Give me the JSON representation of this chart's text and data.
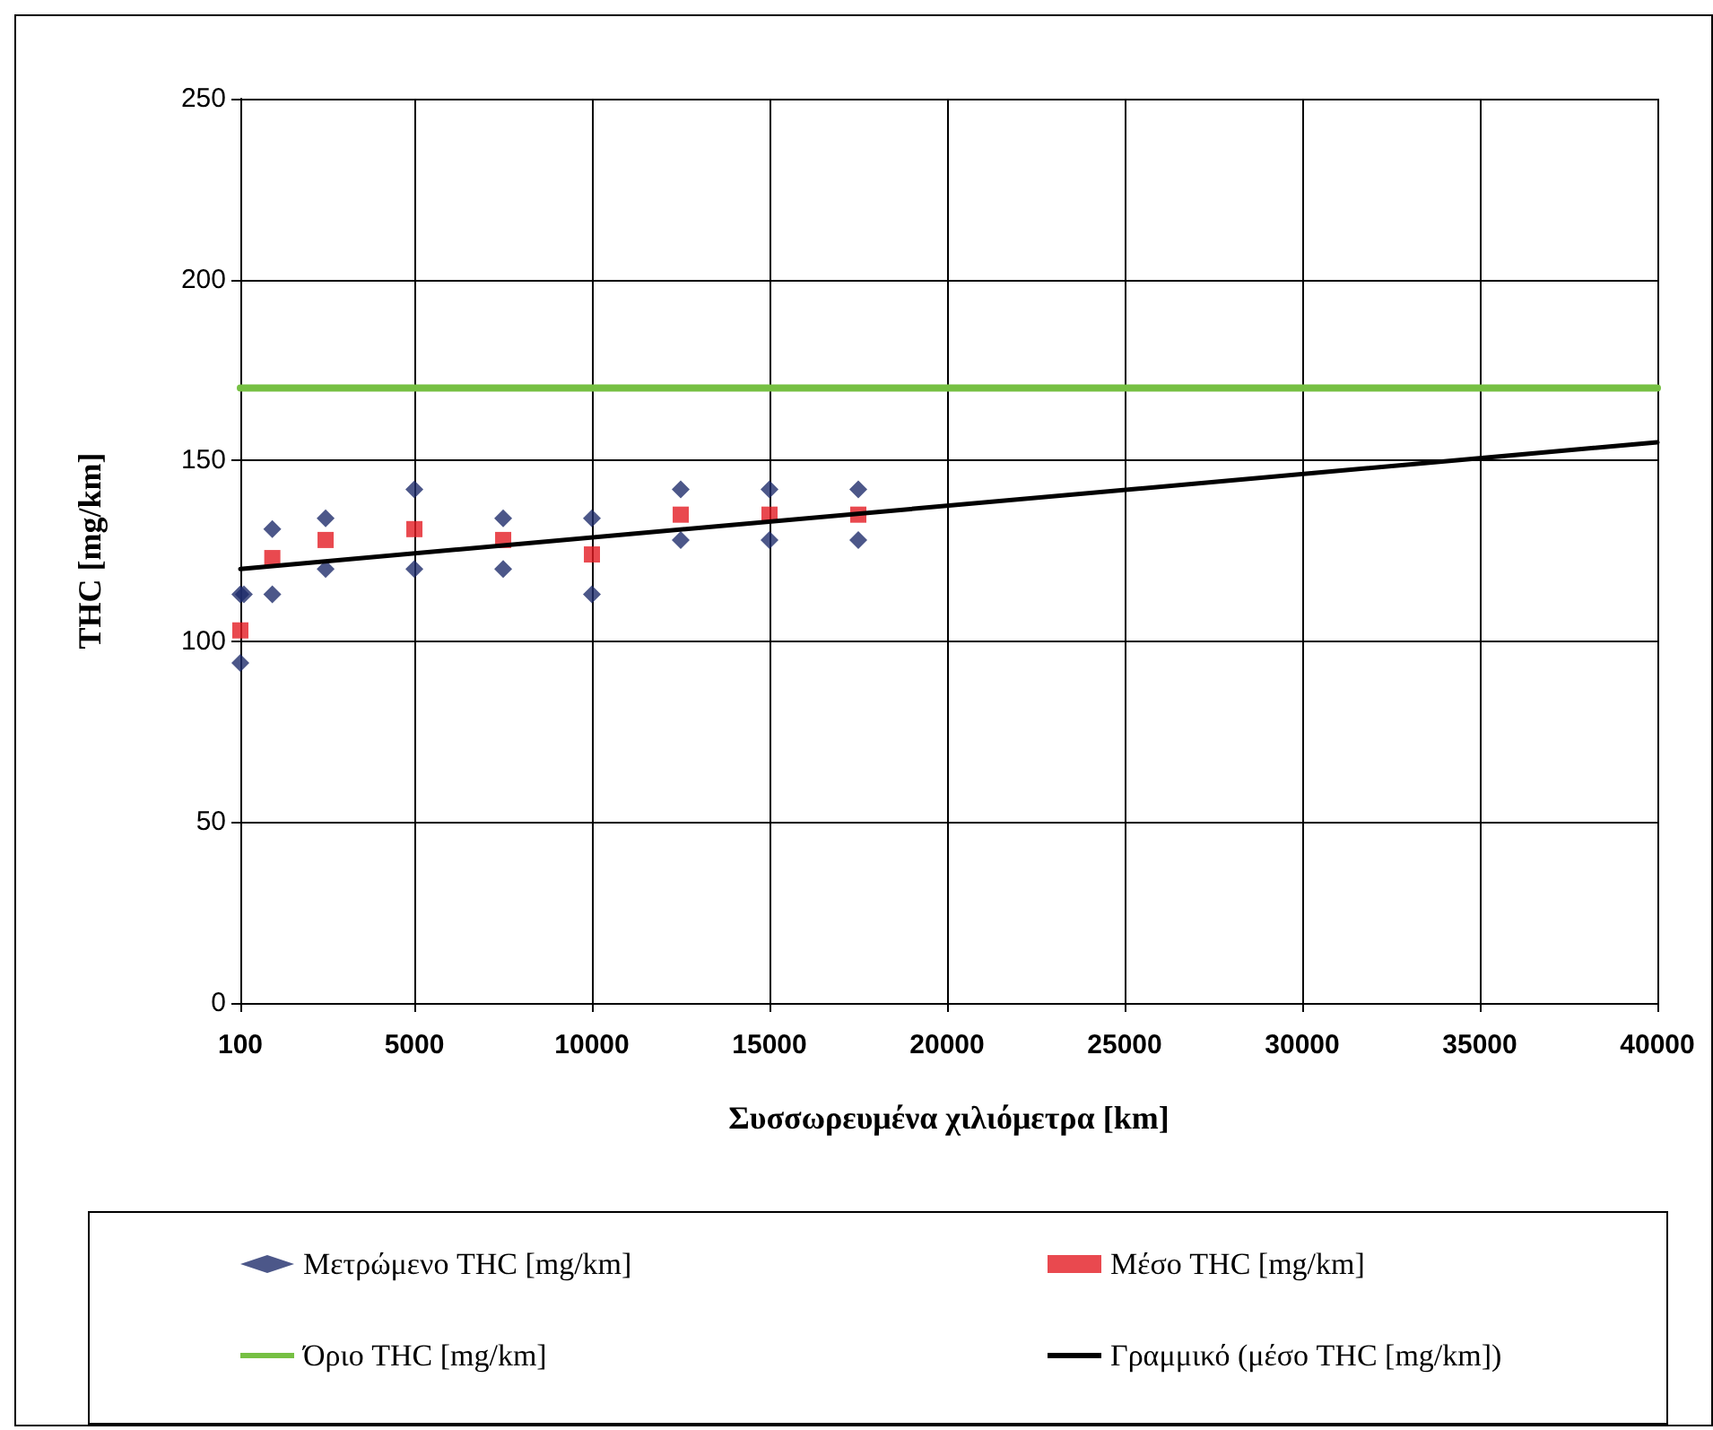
{
  "chart_data": {
    "type": "scatter",
    "xlabel": "Συσσωρευμένα χιλιόμετρα [km]",
    "ylabel": "THC [mg/km]",
    "xlim": [
      100,
      40000
    ],
    "xticks": [
      100,
      5000,
      10000,
      15000,
      20000,
      25000,
      30000,
      35000,
      40000
    ],
    "ylim": [
      0,
      250
    ],
    "yticks": [
      0,
      50,
      100,
      150,
      200,
      250
    ],
    "grid": true,
    "legend": "bottom",
    "series": [
      {
        "name": "Μετρώμενο THC [mg/km]",
        "color": "#1f2d6b",
        "marker": "diamond",
        "x": [
          100,
          200,
          100,
          1000,
          1000,
          2500,
          2500,
          5000,
          5000,
          7500,
          7500,
          10000,
          10000,
          12500,
          12500,
          15000,
          15000,
          17500,
          17500
        ],
        "values": [
          113,
          113,
          94,
          131,
          113,
          134,
          120,
          142,
          120,
          134,
          120,
          134,
          113,
          142,
          128,
          142,
          128,
          142,
          128
        ]
      },
      {
        "name": "Μέσο THC [mg/km]",
        "color": "#e31b23",
        "marker": "square",
        "x": [
          100,
          1000,
          2500,
          5000,
          7500,
          10000,
          12500,
          15000,
          17500
        ],
        "values": [
          103,
          123,
          128,
          131,
          128,
          124,
          135,
          135,
          135
        ]
      },
      {
        "name": "Όριο THC [mg/km]",
        "type": "line",
        "color": "#76c043",
        "marker": "none",
        "line_style": "solid",
        "x": [
          100,
          40000
        ],
        "values": [
          170,
          170
        ]
      },
      {
        "name": "Γραμμικό (μέσο THC [mg/km])",
        "type": "line",
        "color": "#000000",
        "marker": "none",
        "line_style": "solid",
        "x": [
          100,
          40000
        ],
        "values": [
          120,
          155
        ]
      }
    ]
  }
}
